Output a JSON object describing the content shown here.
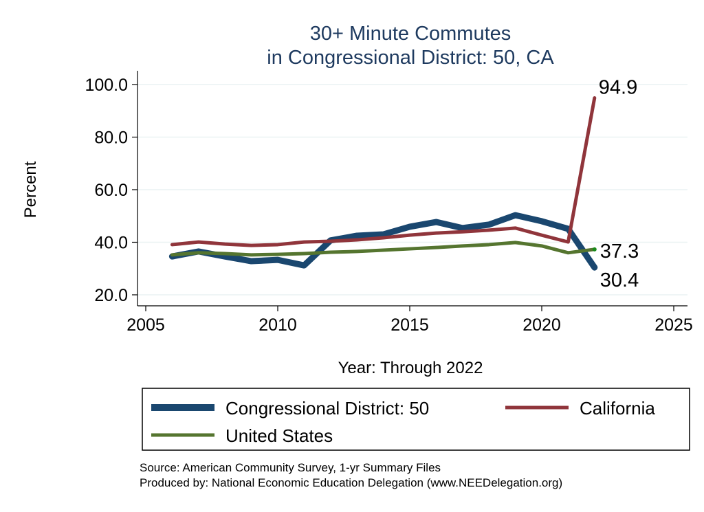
{
  "chart_data": {
    "type": "line",
    "title": "30+ Minute Commutes",
    "subtitle": "in Congressional District:  50, CA",
    "xlabel": "Year: Through 2022",
    "ylabel": "Percent",
    "xlim": [
      2005,
      2025
    ],
    "ylim": [
      20,
      100
    ],
    "xticks": [
      "2005",
      "2010",
      "2015",
      "2020",
      "2025"
    ],
    "yticks": [
      "20.0",
      "40.0",
      "60.0",
      "80.0",
      "100.0"
    ],
    "x": [
      2006,
      2007,
      2008,
      2009,
      2010,
      2011,
      2012,
      2013,
      2014,
      2015,
      2016,
      2017,
      2018,
      2019,
      2020,
      2021,
      2022
    ],
    "series": [
      {
        "name": "Congressional District:  50",
        "color": "#1a476f",
        "values": [
          34.6,
          36.5,
          34.6,
          32.8,
          33.3,
          31.2,
          40.7,
          42.5,
          43.0,
          45.9,
          47.7,
          45.4,
          46.7,
          50.3,
          48.0,
          45.1,
          30.4
        ],
        "end_label": "30.4"
      },
      {
        "name": "California",
        "color": "#90353b",
        "values": [
          39.1,
          40.1,
          39.3,
          38.8,
          39.1,
          40.1,
          40.4,
          40.9,
          41.7,
          42.7,
          43.5,
          44.0,
          44.6,
          45.4,
          42.7,
          40.1,
          94.9
        ],
        "end_label": "94.9"
      },
      {
        "name": "United States",
        "color": "#55752f",
        "values": [
          35.2,
          36.0,
          35.7,
          35.2,
          35.4,
          35.7,
          36.2,
          36.5,
          37.0,
          37.5,
          38.0,
          38.6,
          39.1,
          39.9,
          38.6,
          36.0,
          37.3
        ],
        "end_label": "37.3"
      }
    ],
    "grid": true,
    "legend_position": "bottom"
  },
  "notes": {
    "source": "Source: American Community Survey, 1-yr Summary Files",
    "produced": "Produced by: National Economic Education Delegation (www.NEEDelegation.org)"
  }
}
